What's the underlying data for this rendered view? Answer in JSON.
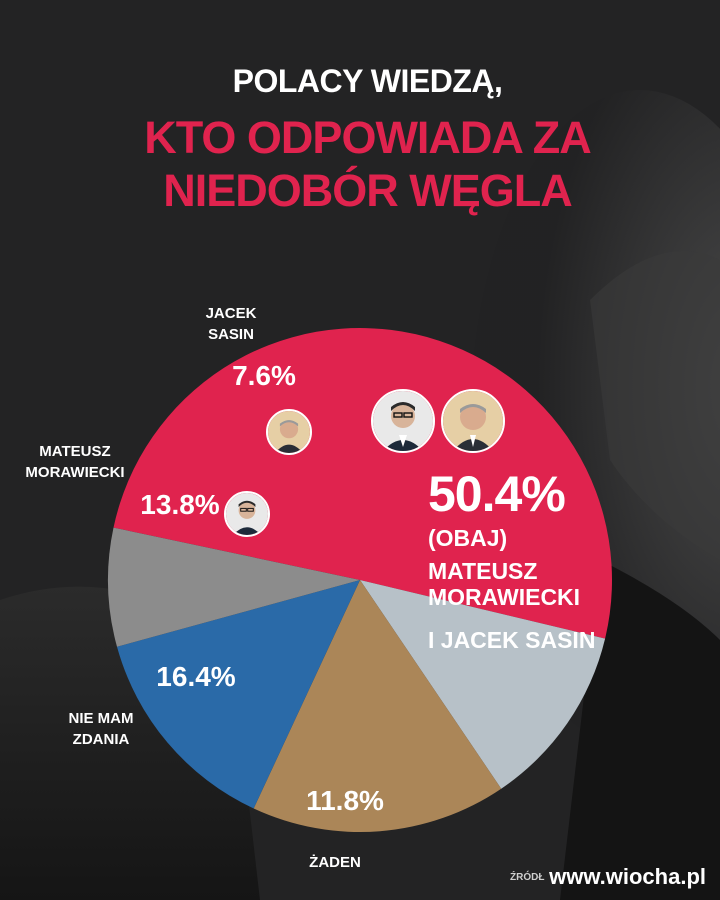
{
  "header": {
    "line1": "POLACY WIEDZĄ,",
    "line2a": "KTO ODPOWIADA ZA",
    "line2b": "NIEDOBÓR WĘGLA"
  },
  "colors": {
    "title_accent": "#e0234e",
    "both": "#e0234e",
    "nobody": "#b7c1c8",
    "no_opinion": "#ab8658",
    "morawiecki": "#2a6aa8",
    "sasin": "#8c8c8c",
    "background": "#222223"
  },
  "chart_data": {
    "type": "pie",
    "slices": [
      {
        "label": "(OBAJ) MATEUSZ MORAWIECKI I JACEK SASIN",
        "value": 50.4,
        "value_label": "50.4%"
      },
      {
        "label": "ŻADEN",
        "value": 11.8,
        "value_label": "11.8%"
      },
      {
        "label": "NIE MAM ZDANIA",
        "value": 16.4,
        "value_label": "16.4%"
      },
      {
        "label": "MATEUSZ MORAWIECKI",
        "value": 13.8,
        "value_label": "13.8%"
      },
      {
        "label": "JACEK SASIN",
        "value": 7.6,
        "value_label": "7.6%"
      }
    ]
  },
  "labels": {
    "sasin_line1": "JACEK",
    "sasin_line2": "SASIN",
    "morawiecki_line1": "MATEUSZ",
    "morawiecki_line2": "MORAWIECKI",
    "no_opinion_line1": "NIE MAM",
    "no_opinion_line2": "ZDANIA",
    "nobody": "ŻADEN",
    "both_pct": "50.4%",
    "both_line1": "(OBAJ)",
    "both_line2": "MATEUSZ",
    "both_line3": "MORAWIECKI",
    "both_line4": "I JACEK SASIN"
  },
  "footer": {
    "source": "ŹRÓDŁ",
    "watermark": "www.wiocha.pl"
  },
  "icons": [
    "morawiecki-avatar-icon",
    "sasin-avatar-icon"
  ]
}
